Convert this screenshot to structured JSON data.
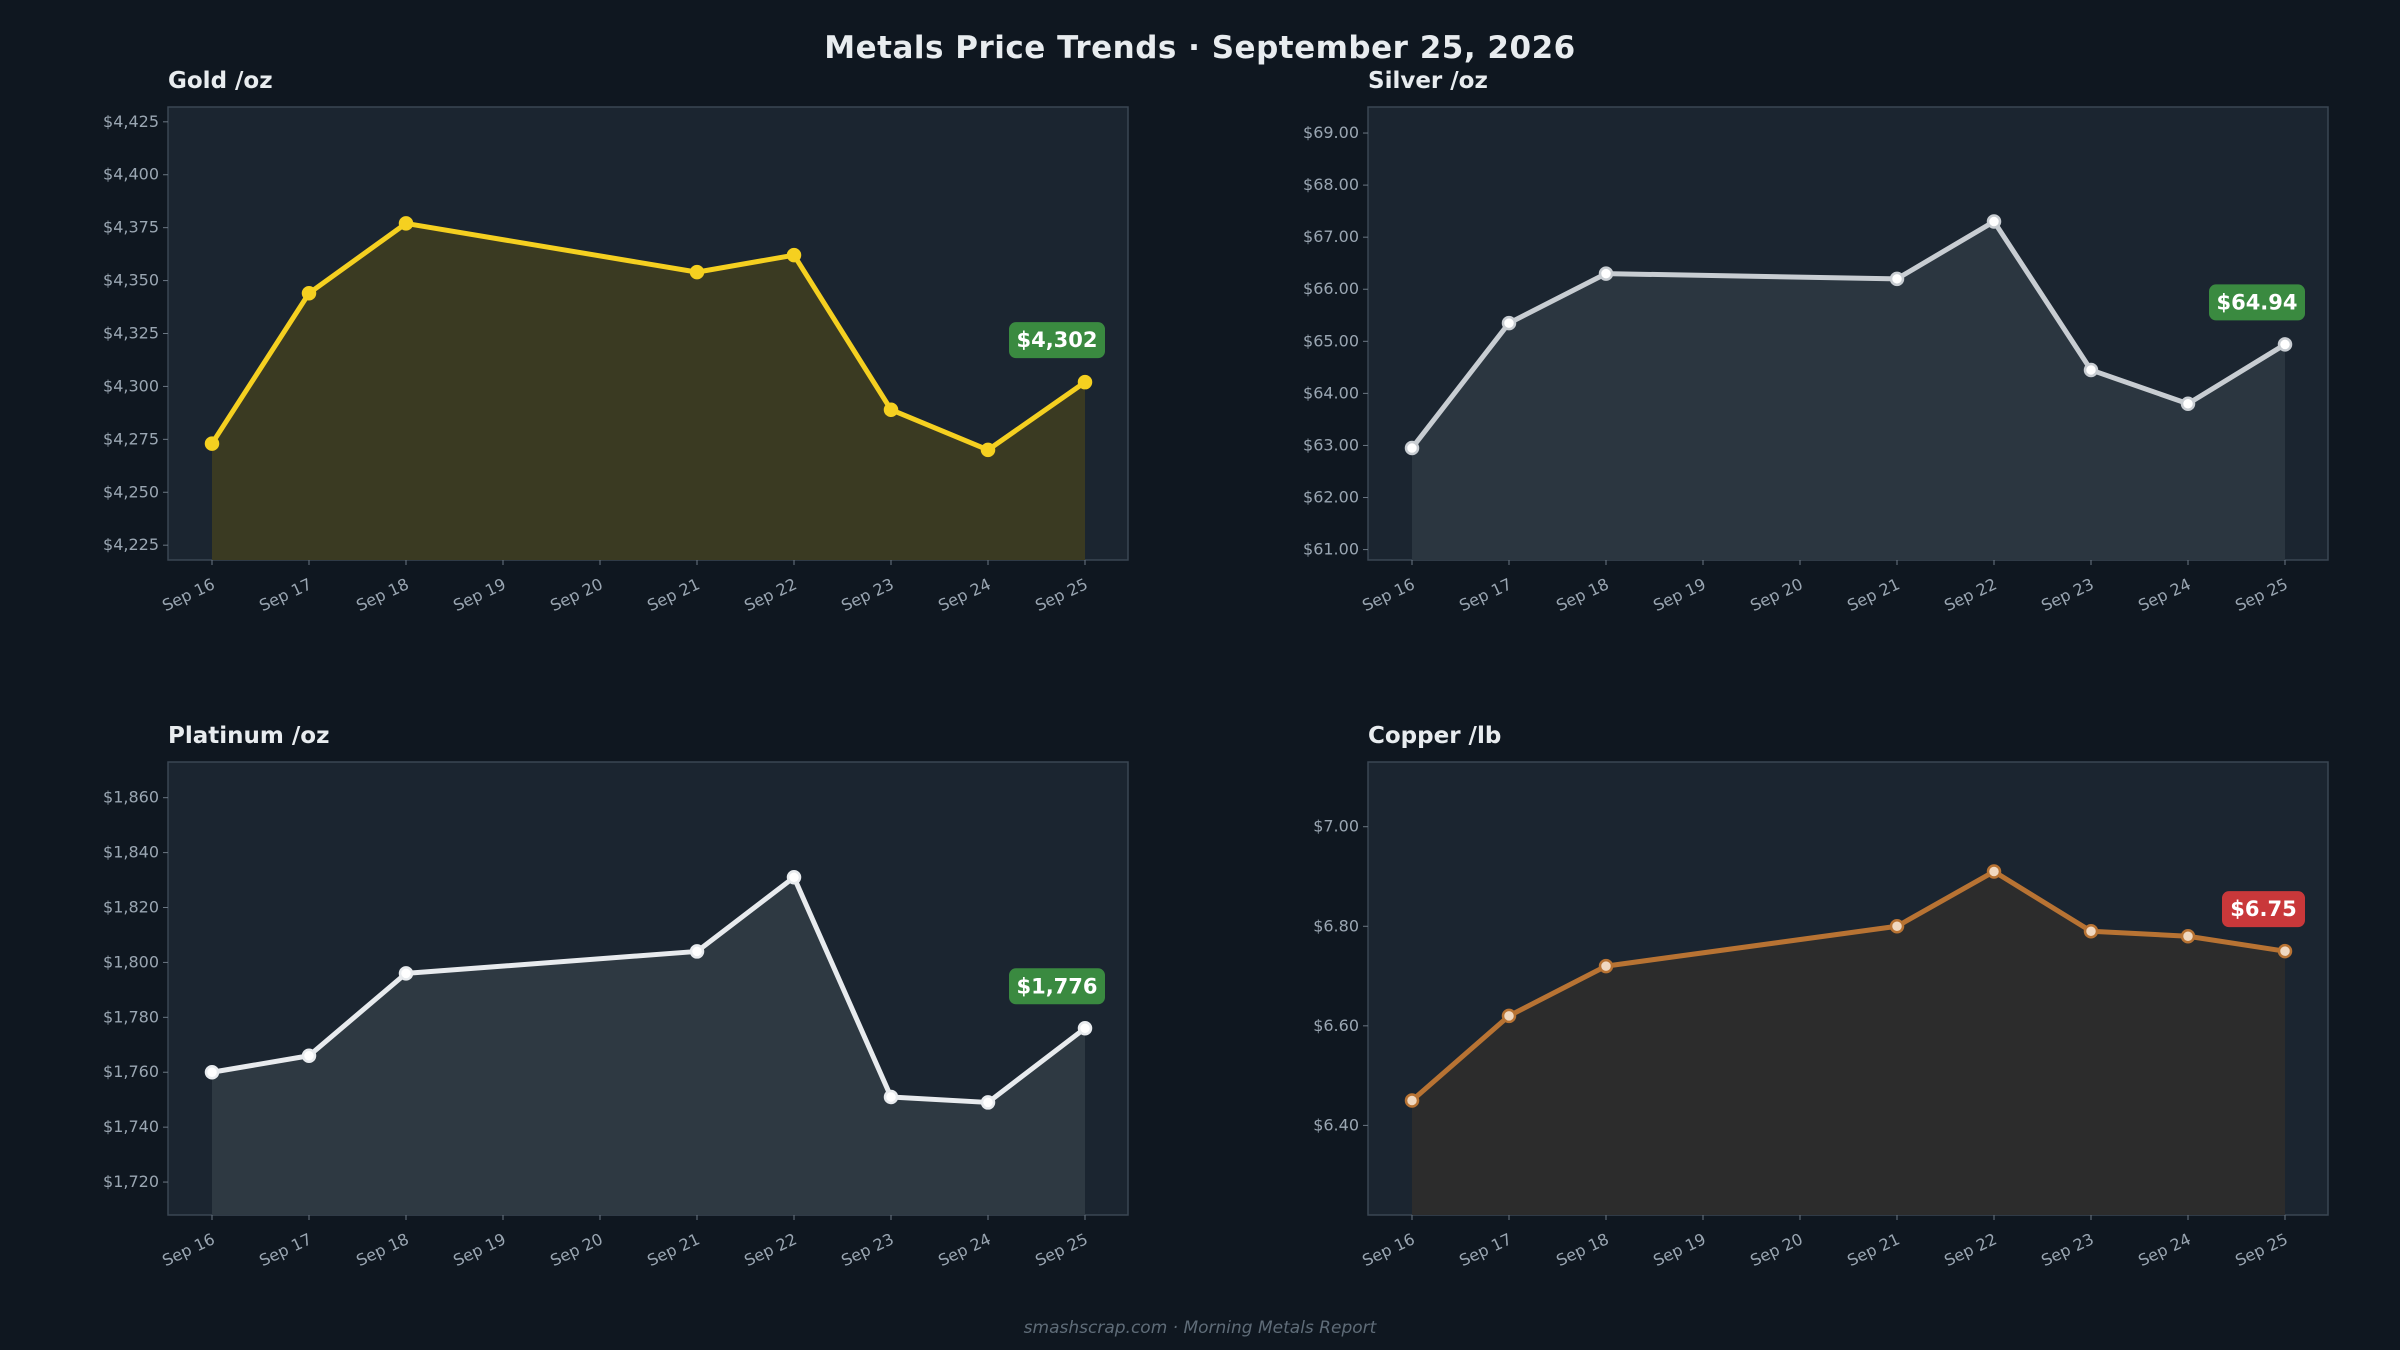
{
  "page": {
    "title": "Metals Price Trends  ·  September 25, 2026",
    "footer": "smashscrap.com  ·  Morning Metals Report"
  },
  "colors": {
    "background": "#0f1720",
    "plot_bg": "#1b2530",
    "frame": "#3a4652",
    "badge_up": "#3a8a40",
    "badge_down": "#c9383a"
  },
  "chart_data": [
    {
      "type": "area",
      "title": "Gold  /oz",
      "categories": [
        "Sep 16",
        "Sep 17",
        "Sep 18",
        "Sep 19",
        "Sep 20",
        "Sep 21",
        "Sep 22",
        "Sep 23",
        "Sep 24",
        "Sep 25"
      ],
      "x": [
        "Sep 16",
        "Sep 17",
        "Sep 18",
        "Sep 21",
        "Sep 22",
        "Sep 23",
        "Sep 24",
        "Sep 25"
      ],
      "values": [
        4273,
        4344,
        4377,
        4354,
        4362,
        4289,
        4270,
        4302
      ],
      "ylim": [
        4218,
        4432
      ],
      "yticks": [
        4225,
        4250,
        4275,
        4300,
        4325,
        4350,
        4375,
        4400,
        4425
      ],
      "ytick_labels": [
        "$4,225",
        "$4,250",
        "$4,275",
        "$4,300",
        "$4,325",
        "$4,350",
        "$4,375",
        "$4,400",
        "$4,425"
      ],
      "badge": "$4,302",
      "badge_direction": "up",
      "line_color": "#f5d020",
      "fill_color": "#3a3a22",
      "marker_fill": "#f5d020",
      "grid": false
    },
    {
      "type": "area",
      "title": "Silver  /oz",
      "categories": [
        "Sep 16",
        "Sep 17",
        "Sep 18",
        "Sep 19",
        "Sep 20",
        "Sep 21",
        "Sep 22",
        "Sep 23",
        "Sep 24",
        "Sep 25"
      ],
      "x": [
        "Sep 16",
        "Sep 17",
        "Sep 18",
        "Sep 21",
        "Sep 22",
        "Sep 23",
        "Sep 24",
        "Sep 25"
      ],
      "values": [
        62.95,
        65.35,
        66.3,
        66.2,
        67.3,
        64.45,
        63.8,
        64.94
      ],
      "ylim": [
        60.8,
        69.5
      ],
      "yticks": [
        61,
        62,
        63,
        64,
        65,
        66,
        67,
        68,
        69
      ],
      "ytick_labels": [
        "$61.00",
        "$62.00",
        "$63.00",
        "$64.00",
        "$65.00",
        "$66.00",
        "$67.00",
        "$68.00",
        "$69.00"
      ],
      "badge": "$64.94",
      "badge_direction": "up",
      "line_color": "#c8cdd2",
      "fill_color": "#2b3640",
      "marker_fill": "#ffffff",
      "grid": false
    },
    {
      "type": "area",
      "title": "Platinum  /oz",
      "categories": [
        "Sep 16",
        "Sep 17",
        "Sep 18",
        "Sep 19",
        "Sep 20",
        "Sep 21",
        "Sep 22",
        "Sep 23",
        "Sep 24",
        "Sep 25"
      ],
      "x": [
        "Sep 16",
        "Sep 17",
        "Sep 18",
        "Sep 21",
        "Sep 22",
        "Sep 23",
        "Sep 24",
        "Sep 25"
      ],
      "values": [
        1760,
        1766,
        1796,
        1804,
        1831,
        1751,
        1749,
        1776
      ],
      "ylim": [
        1708,
        1873
      ],
      "yticks": [
        1720,
        1740,
        1760,
        1780,
        1800,
        1820,
        1840,
        1860
      ],
      "ytick_labels": [
        "$1,720",
        "$1,740",
        "$1,760",
        "$1,780",
        "$1,800",
        "$1,820",
        "$1,840",
        "$1,860"
      ],
      "badge": "$1,776",
      "badge_direction": "up",
      "line_color": "#e8ebee",
      "fill_color": "#2e3942",
      "marker_fill": "#ffffff",
      "grid": false
    },
    {
      "type": "area",
      "title": "Copper  /lb",
      "categories": [
        "Sep 16",
        "Sep 17",
        "Sep 18",
        "Sep 19",
        "Sep 20",
        "Sep 21",
        "Sep 22",
        "Sep 23",
        "Sep 24",
        "Sep 25"
      ],
      "x": [
        "Sep 16",
        "Sep 17",
        "Sep 18",
        "Sep 21",
        "Sep 22",
        "Sep 23",
        "Sep 24",
        "Sep 25"
      ],
      "values": [
        6.45,
        6.62,
        6.72,
        6.8,
        6.91,
        6.79,
        6.78,
        6.75
      ],
      "ylim": [
        6.22,
        7.13
      ],
      "yticks": [
        6.4,
        6.6,
        6.8,
        7.0
      ],
      "ytick_labels": [
        "$6.40",
        "$6.60",
        "$6.80",
        "$7.00"
      ],
      "badge": "$6.75",
      "badge_direction": "down",
      "line_color": "#b87333",
      "fill_color": "#2c2c2c",
      "marker_fill": "#f0d8c0",
      "grid": false
    }
  ]
}
